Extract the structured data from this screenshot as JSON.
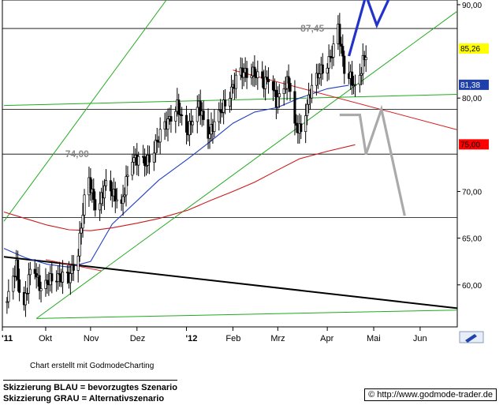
{
  "chart_data": {
    "type": "candlestick",
    "y_axis": {
      "side": "right",
      "ylim": [
        55.5,
        90.5
      ],
      "ticks": [
        {
          "value": 90,
          "label": "90,00"
        },
        {
          "value": 80,
          "label": "80,00"
        },
        {
          "value": 70,
          "label": "70,00"
        },
        {
          "value": 65,
          "label": "65,00"
        },
        {
          "value": 60,
          "label": "60,00"
        }
      ]
    },
    "x_axis": {
      "start": "2011-09-05",
      "end": "2012-06-25",
      "labels": [
        {
          "date": "2011-09-05",
          "label": "'11"
        },
        {
          "date": "2011-10-03",
          "label": "Okt"
        },
        {
          "date": "2011-11-01",
          "label": "Nov"
        },
        {
          "date": "2011-12-01",
          "label": "Dez"
        },
        {
          "date": "2012-01-02",
          "label": "'12"
        },
        {
          "date": "2012-02-01",
          "label": "Feb"
        },
        {
          "date": "2012-03-01",
          "label": "Mrz"
        },
        {
          "date": "2012-04-02",
          "label": "Apr"
        },
        {
          "date": "2012-05-02",
          "label": "Mai"
        },
        {
          "date": "2012-06-01",
          "label": "Jun"
        }
      ]
    },
    "price_boxes": [
      {
        "label": "85,26",
        "value": 85.26,
        "bg": "#ffff00",
        "fg": "#000000"
      },
      {
        "label": "81,38",
        "value": 81.38,
        "bg": "#1f3faa",
        "fg": "#ffffff"
      },
      {
        "label": "75,00",
        "value": 75.0,
        "bg": "#ff0000",
        "fg": "#000000"
      }
    ],
    "annotations": [
      {
        "label": "87,45",
        "value": 87.45,
        "date": "2012-04-02"
      },
      {
        "label": "74,00",
        "value": 74.0,
        "date": "2011-11-02"
      }
    ],
    "horizontal_levels": [
      87.45,
      78.8,
      74.0,
      67.2
    ],
    "trend_lines": [
      {
        "name": "upper-channel",
        "color": "#22aa22",
        "p1": [
          "2011-09-06",
          66.8
        ],
        "p2": [
          "2011-12-20",
          90.5
        ]
      },
      {
        "name": "lower-channel",
        "color": "#22aa22",
        "p1": [
          "2011-09-27",
          56.4
        ],
        "p2": [
          "2012-06-25",
          89.3
        ]
      },
      {
        "name": "horizontal-support-1",
        "color": "#22aa22",
        "p1": [
          "2011-09-06",
          79.2
        ],
        "p2": [
          "2012-06-25",
          80.4
        ]
      },
      {
        "name": "horizontal-support-2",
        "color": "#22aa22",
        "p1": [
          "2011-09-27",
          56.4
        ],
        "p2": [
          "2012-06-25",
          57.3
        ]
      },
      {
        "name": "black-downtrend",
        "color": "#000000",
        "p1": [
          "2011-09-06",
          63.0
        ],
        "p2": [
          "2012-06-25",
          57.5
        ]
      },
      {
        "name": "red-downtrend-short",
        "color": "#d82020",
        "p1": [
          "2011-10-03",
          62.7
        ],
        "p2": [
          "2011-11-08",
          61.5
        ]
      },
      {
        "name": "red-downtrend-long",
        "color": "#d82020",
        "p1": [
          "2012-02-01",
          83.0
        ],
        "p2": [
          "2012-06-25",
          76.6
        ]
      }
    ],
    "moving_averages": [
      {
        "name": "ma-blue",
        "color": "#2040c0",
        "points": [
          [
            "2011-09-06",
            63.9
          ],
          [
            "2011-09-20",
            62.9
          ],
          [
            "2011-10-04",
            62.2
          ],
          [
            "2011-10-18",
            61.9
          ],
          [
            "2011-11-01",
            62.5
          ],
          [
            "2011-11-15",
            66.5
          ],
          [
            "2011-12-01",
            69.0
          ],
          [
            "2011-12-15",
            71.2
          ],
          [
            "2012-01-03",
            73.5
          ],
          [
            "2012-01-17",
            75.3
          ],
          [
            "2012-02-01",
            77.3
          ],
          [
            "2012-02-15",
            78.5
          ],
          [
            "2012-03-01",
            79.0
          ],
          [
            "2012-03-15",
            80.0
          ],
          [
            "2012-04-02",
            81.0
          ],
          [
            "2012-04-16",
            81.38
          ]
        ]
      },
      {
        "name": "ma-red",
        "color": "#cc1a1a",
        "points": [
          [
            "2011-09-06",
            67.8
          ],
          [
            "2011-09-20",
            67.1
          ],
          [
            "2011-10-04",
            66.4
          ],
          [
            "2011-10-18",
            65.9
          ],
          [
            "2011-11-01",
            65.8
          ],
          [
            "2011-11-15",
            66.1
          ],
          [
            "2011-12-01",
            66.6
          ],
          [
            "2011-12-15",
            67.1
          ],
          [
            "2012-01-03",
            68.0
          ],
          [
            "2012-01-17",
            69.0
          ],
          [
            "2012-02-01",
            70.0
          ],
          [
            "2012-02-15",
            71.0
          ],
          [
            "2012-03-01",
            72.3
          ],
          [
            "2012-03-15",
            73.5
          ],
          [
            "2012-04-02",
            74.3
          ],
          [
            "2012-04-20",
            75.0
          ]
        ]
      }
    ],
    "scenario_lines": [
      {
        "name": "scenario-blue",
        "color": "#2233cc",
        "points": [
          [
            "2012-04-16",
            84.5
          ],
          [
            "2012-04-27",
            91.0
          ],
          [
            "2012-05-04",
            87.8
          ],
          [
            "2012-05-14",
            91.4
          ]
        ]
      },
      {
        "name": "scenario-gray",
        "color": "#aaaaaa",
        "points": [
          [
            "2012-04-10",
            78.2
          ],
          [
            "2012-04-23",
            78.2
          ],
          [
            "2012-04-27",
            74.0
          ],
          [
            "2012-05-07",
            78.8
          ],
          [
            "2012-05-22",
            67.4
          ]
        ]
      }
    ]
  },
  "footer": {
    "credit": "Chart erstellt mit GodmodeCharting",
    "legend_blue": "Skizzierung BLAU = bevorzugtes Szenario",
    "legend_gray": "Skizzierung GRAU = Alternativszenario",
    "copyright": "© http://www.godmode-trader.de"
  },
  "icons": {
    "drawing_tool": "pencil-icon"
  }
}
